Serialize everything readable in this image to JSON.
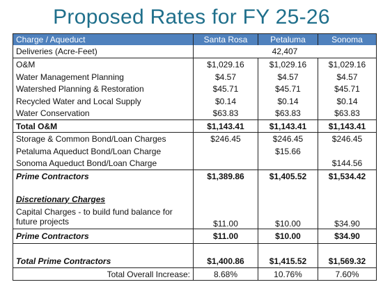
{
  "title": "Proposed Rates for FY 25-26",
  "table": {
    "header": [
      "Charge / Aqueduct",
      "Santa Rosa",
      "Petaluma",
      "Sonoma"
    ],
    "rows": [
      {
        "label": "Deliveries (Acre-Feet)",
        "value": "42,407"
      },
      {
        "label": "O&M",
        "santa_rosa": "$1,029.16",
        "petaluma": "$1,029.16",
        "sonoma": "$1,029.16"
      },
      {
        "label": "Water Management Planning",
        "santa_rosa": "$4.57",
        "petaluma": "$4.57",
        "sonoma": "$4.57"
      },
      {
        "label": "Watershed Planning & Restoration",
        "santa_rosa": "$45.71",
        "petaluma": "$45.71",
        "sonoma": "$45.71"
      },
      {
        "label": "Recycled Water and Local Supply",
        "santa_rosa": "$0.14",
        "petaluma": "$0.14",
        "sonoma": "$0.14"
      },
      {
        "label": "Water Conservation",
        "santa_rosa": "$63.83",
        "petaluma": "$63.83",
        "sonoma": "$63.83"
      },
      {
        "label": "Total O&M",
        "santa_rosa": "$1,143.41",
        "petaluma": "$1,143.41",
        "sonoma": "$1,143.41"
      },
      {
        "label": "Storage & Common Bond/Loan Charges",
        "santa_rosa": "$246.45",
        "petaluma": "$246.45",
        "sonoma": "$246.45"
      },
      {
        "label": "Petaluma Aqueduct Bond/Loan Charge",
        "petaluma": "$15.66"
      },
      {
        "label": "Sonoma Aqueduct Bond/Loan Charge",
        "sonoma": "$144.56"
      },
      {
        "label": "Prime Contractors",
        "santa_rosa": "$1,389.86",
        "petaluma": "$1,405.52",
        "sonoma": "$1,534.42"
      },
      {
        "label": "Discretionary Charges"
      },
      {
        "label": "Capital Charges - to build fund balance for future projects",
        "santa_rosa": "$11.00",
        "petaluma": "$10.00",
        "sonoma": "$34.90"
      },
      {
        "label": "Prime Contractors",
        "santa_rosa": "$11.00",
        "petaluma": "$10.00",
        "sonoma": "$34.90"
      },
      {
        "label": "Total Prime Contractors",
        "santa_rosa": "$1,400.86",
        "petaluma": "$1,415.52",
        "sonoma": "$1,569.32"
      },
      {
        "label": "Total Overall Increase:",
        "santa_rosa": "8.68%",
        "petaluma": "10.76%",
        "sonoma": "7.60%"
      }
    ]
  }
}
